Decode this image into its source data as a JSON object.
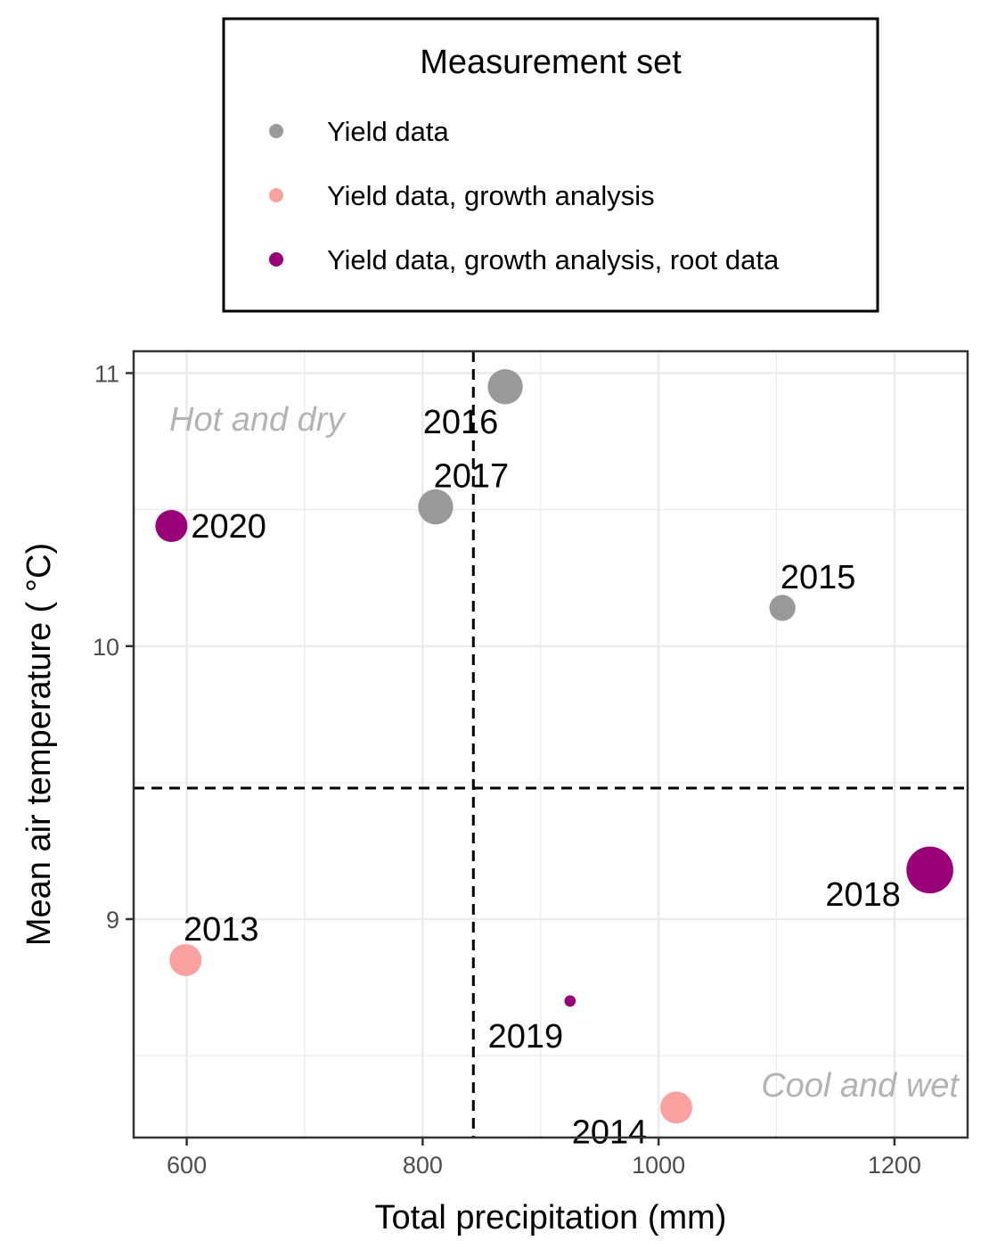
{
  "chart_data": {
    "type": "scatter",
    "title": "",
    "xlabel": "Total precipitation (mm)",
    "ylabel": "Mean air temperature ( °C)",
    "xlim": [
      555,
      1262
    ],
    "ylim": [
      8.2,
      11.08
    ],
    "x_ticks": [
      600,
      800,
      1000,
      1200
    ],
    "y_ticks": [
      9,
      10,
      11
    ],
    "x_tick_labels": [
      "600",
      "800",
      "1000",
      "1200"
    ],
    "y_tick_labels": [
      "9",
      "10",
      "11"
    ],
    "grid": true,
    "reference_lines": {
      "x": 843,
      "y": 9.48
    },
    "legend": {
      "title": "Measurement set",
      "position": "top",
      "entries": [
        {
          "name": "Yield data",
          "color": "#999999"
        },
        {
          "name": "Yield data, growth analysis",
          "color": "#f9a0a0"
        },
        {
          "name": "Yield data, growth analysis, root data",
          "color": "#990077"
        }
      ]
    },
    "annotations": [
      {
        "text": "Hot and dry",
        "position": "top-left"
      },
      {
        "text": "Cool and wet",
        "position": "bottom-right"
      }
    ],
    "points": [
      {
        "label": "2013",
        "x": 599,
        "y": 8.85,
        "set": 1,
        "size": 4.5,
        "label_pos": "above-right"
      },
      {
        "label": "2014",
        "x": 1015,
        "y": 8.31,
        "set": 1,
        "size": 4.5,
        "label_pos": "left-below"
      },
      {
        "label": "2015",
        "x": 1105,
        "y": 10.14,
        "set": 0,
        "size": 3.5,
        "label_pos": "above-right"
      },
      {
        "label": "2016",
        "x": 870,
        "y": 10.95,
        "set": 0,
        "size": 5.0,
        "label_pos": "below-left"
      },
      {
        "label": "2017",
        "x": 811,
        "y": 10.51,
        "set": 0,
        "size": 5.0,
        "label_pos": "above-right"
      },
      {
        "label": "2018",
        "x": 1230,
        "y": 9.18,
        "set": 2,
        "size": 7.0,
        "label_pos": "left-below"
      },
      {
        "label": "2019",
        "x": 925,
        "y": 8.7,
        "set": 2,
        "size": 1.0,
        "label_pos": "below-left"
      },
      {
        "label": "2020",
        "x": 587,
        "y": 10.44,
        "set": 2,
        "size": 4.5,
        "label_pos": "right"
      }
    ]
  }
}
